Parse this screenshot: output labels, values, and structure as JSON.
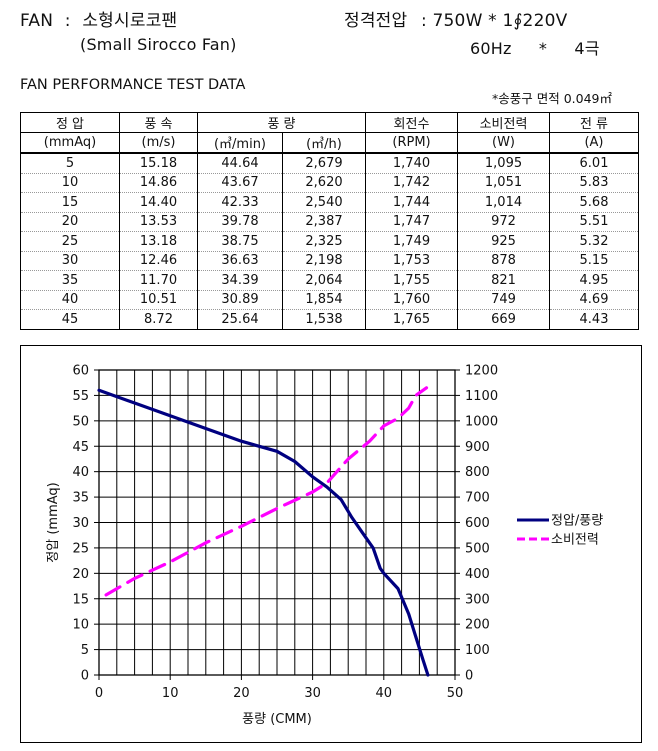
{
  "header": {
    "fan_label": "FAN",
    "fan_colon": ":",
    "fan_name_ko": "소형시로코팬",
    "fan_name_en": "(Small Sirocco Fan)",
    "rated_label": "정격전압",
    "rated_value": ":  750W  *  1∮220V",
    "freq": "60Hz",
    "star": "*",
    "poles": "4극"
  },
  "section_title": "FAN PERFORMANCE TEST DATA",
  "outlet_note": "*송풍구 면적 0.049㎡",
  "table": {
    "header_top": [
      "정  압",
      "풍  속",
      "풍    량",
      "회전수",
      "소비전력",
      "전  류"
    ],
    "header_units": [
      "(mmAq)",
      "(m/s)",
      "(㎥/min)",
      "(㎥/h)",
      "(RPM)",
      "(W)",
      "(A)"
    ],
    "rows": [
      [
        "5",
        "15.18",
        "44.64",
        "2,679",
        "1,740",
        "1,095",
        "6.01"
      ],
      [
        "10",
        "14.86",
        "43.67",
        "2,620",
        "1,742",
        "1,051",
        "5.83"
      ],
      [
        "15",
        "14.40",
        "42.33",
        "2,540",
        "1,744",
        "1,014",
        "5.68"
      ],
      [
        "20",
        "13.53",
        "39.78",
        "2,387",
        "1,747",
        "972",
        "5.51"
      ],
      [
        "25",
        "13.18",
        "38.75",
        "2,325",
        "1,749",
        "925",
        "5.32"
      ],
      [
        "30",
        "12.46",
        "36.63",
        "2,198",
        "1,753",
        "878",
        "5.15"
      ],
      [
        "35",
        "11.70",
        "34.39",
        "2,064",
        "1,755",
        "821",
        "4.95"
      ],
      [
        "40",
        "10.51",
        "30.89",
        "1,854",
        "1,760",
        "749",
        "4.69"
      ],
      [
        "45",
        "8.72",
        "25.64",
        "1,538",
        "1,765",
        "669",
        "4.43"
      ]
    ]
  },
  "chart_data": {
    "type": "line",
    "xlabel": "풍량 (CMM)",
    "ylabel": "정압 (mmAq)",
    "xlim": [
      0,
      50
    ],
    "ylim": [
      0,
      60
    ],
    "y2lim": [
      0,
      1200
    ],
    "xticks": [
      0,
      10,
      20,
      30,
      40,
      50
    ],
    "yticks": [
      0,
      5,
      10,
      15,
      20,
      25,
      30,
      35,
      40,
      45,
      50,
      55,
      60
    ],
    "y2ticks": [
      0,
      100,
      200,
      300,
      400,
      500,
      600,
      700,
      800,
      900,
      1000,
      1100,
      1200
    ],
    "grid": true,
    "legend_position": "right",
    "series": [
      {
        "name": "정압/풍량",
        "axis": "left",
        "color": "#000080",
        "style": "solid",
        "x": [
          0,
          5,
          10,
          15,
          20,
          25,
          27.5,
          30,
          32,
          34,
          35.5,
          37,
          38.5,
          39.5,
          40,
          42,
          43.5,
          44.6,
          45.5,
          46.2
        ],
        "y": [
          56,
          53.5,
          51,
          48.5,
          46,
          44,
          42,
          39,
          37,
          34.5,
          31,
          28,
          25,
          21,
          20,
          17,
          12,
          7,
          3,
          0
        ]
      },
      {
        "name": "소비전력",
        "axis": "right",
        "color": "#ff00ff",
        "style": "dashed",
        "x": [
          1,
          5,
          10,
          15,
          20,
          25,
          30,
          32,
          35,
          38,
          40,
          42,
          43.5,
          44.5,
          46
        ],
        "y": [
          315,
          380,
          445,
          520,
          585,
          655,
          720,
          755,
          850,
          920,
          980,
          1010,
          1050,
          1100,
          1130
        ]
      }
    ]
  },
  "colors": {
    "pressure_line": "#000080",
    "power_line": "#ff00ff",
    "grid": "#000000"
  }
}
